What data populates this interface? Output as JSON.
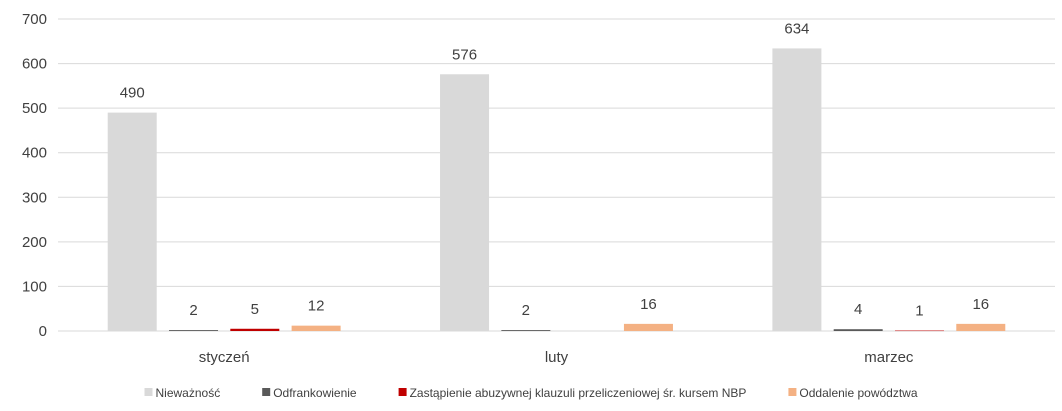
{
  "chart_data": {
    "type": "bar",
    "categories": [
      "styczeń",
      "luty",
      "marzec"
    ],
    "series": [
      {
        "name": "Nieważność",
        "values": [
          490,
          576,
          634
        ],
        "color": "#d9d9d9"
      },
      {
        "name": "Odfrankowienie",
        "values": [
          2,
          2,
          4
        ],
        "color": "#595959"
      },
      {
        "name": "Zastąpienie abuzywnej klauzuli przeliczeniowej śr. kursem NBP",
        "values": [
          5,
          null,
          1
        ],
        "color": "#c00000"
      },
      {
        "name": "Oddalenie powództwa",
        "values": [
          12,
          16,
          16
        ],
        "color": "#f4b183"
      }
    ],
    "data_labels": [
      [
        "490",
        "576",
        "634"
      ],
      [
        "2",
        "2",
        "4"
      ],
      [
        "5",
        "",
        "1"
      ],
      [
        "12",
        "16",
        "16"
      ]
    ],
    "ylim": [
      0,
      700
    ],
    "yticks": [
      "0",
      "100",
      "200",
      "300",
      "400",
      "500",
      "600",
      "700"
    ],
    "title": "",
    "xlabel": "",
    "ylabel": "",
    "grid": true,
    "legend_position": "bottom"
  }
}
